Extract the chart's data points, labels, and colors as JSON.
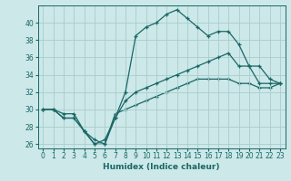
{
  "xlabel": "Humidex (Indice chaleur)",
  "background_color": "#cce8e8",
  "grid_color": "#aacccc",
  "line_color": "#1a6666",
  "xlim": [
    -0.5,
    23.5
  ],
  "ylim": [
    25.5,
    42.0
  ],
  "xticks": [
    0,
    1,
    2,
    3,
    4,
    5,
    6,
    7,
    8,
    9,
    10,
    11,
    12,
    13,
    14,
    15,
    16,
    17,
    18,
    19,
    20,
    21,
    22,
    23
  ],
  "yticks": [
    26,
    28,
    30,
    32,
    34,
    36,
    38,
    40
  ],
  "line1_x": [
    0,
    1,
    2,
    3,
    4,
    5,
    6,
    7,
    8,
    9,
    10,
    11,
    12,
    13,
    14,
    15,
    16,
    17,
    18,
    19,
    20,
    21,
    22,
    23
  ],
  "line1_y": [
    30,
    30,
    29.5,
    29.5,
    27.5,
    26,
    26.5,
    29,
    32,
    38.5,
    39.5,
    40,
    41,
    41.5,
    40.5,
    39.5,
    38.5,
    39,
    39,
    37.5,
    35,
    35,
    33.5,
    33
  ],
  "line2_x": [
    0,
    1,
    2,
    3,
    4,
    5,
    6,
    7,
    8,
    9,
    10,
    11,
    12,
    13,
    14,
    15,
    16,
    17,
    18,
    19,
    20,
    21,
    22,
    23
  ],
  "line2_y": [
    30,
    30,
    29,
    29,
    27.5,
    26.5,
    26,
    29,
    31,
    32,
    32.5,
    33,
    33.5,
    34,
    34.5,
    35,
    35.5,
    36,
    36.5,
    35,
    35,
    33,
    33,
    33
  ],
  "line3_x": [
    0,
    1,
    2,
    3,
    4,
    5,
    6,
    7,
    8,
    9,
    10,
    11,
    12,
    13,
    14,
    15,
    16,
    17,
    18,
    19,
    20,
    21,
    22,
    23
  ],
  "line3_y": [
    30,
    30,
    29,
    29,
    27.5,
    26,
    26,
    29.5,
    30,
    30.5,
    31,
    31.5,
    32,
    32.5,
    33,
    33.5,
    33.5,
    33.5,
    33.5,
    33,
    33,
    32.5,
    32.5,
    33
  ]
}
